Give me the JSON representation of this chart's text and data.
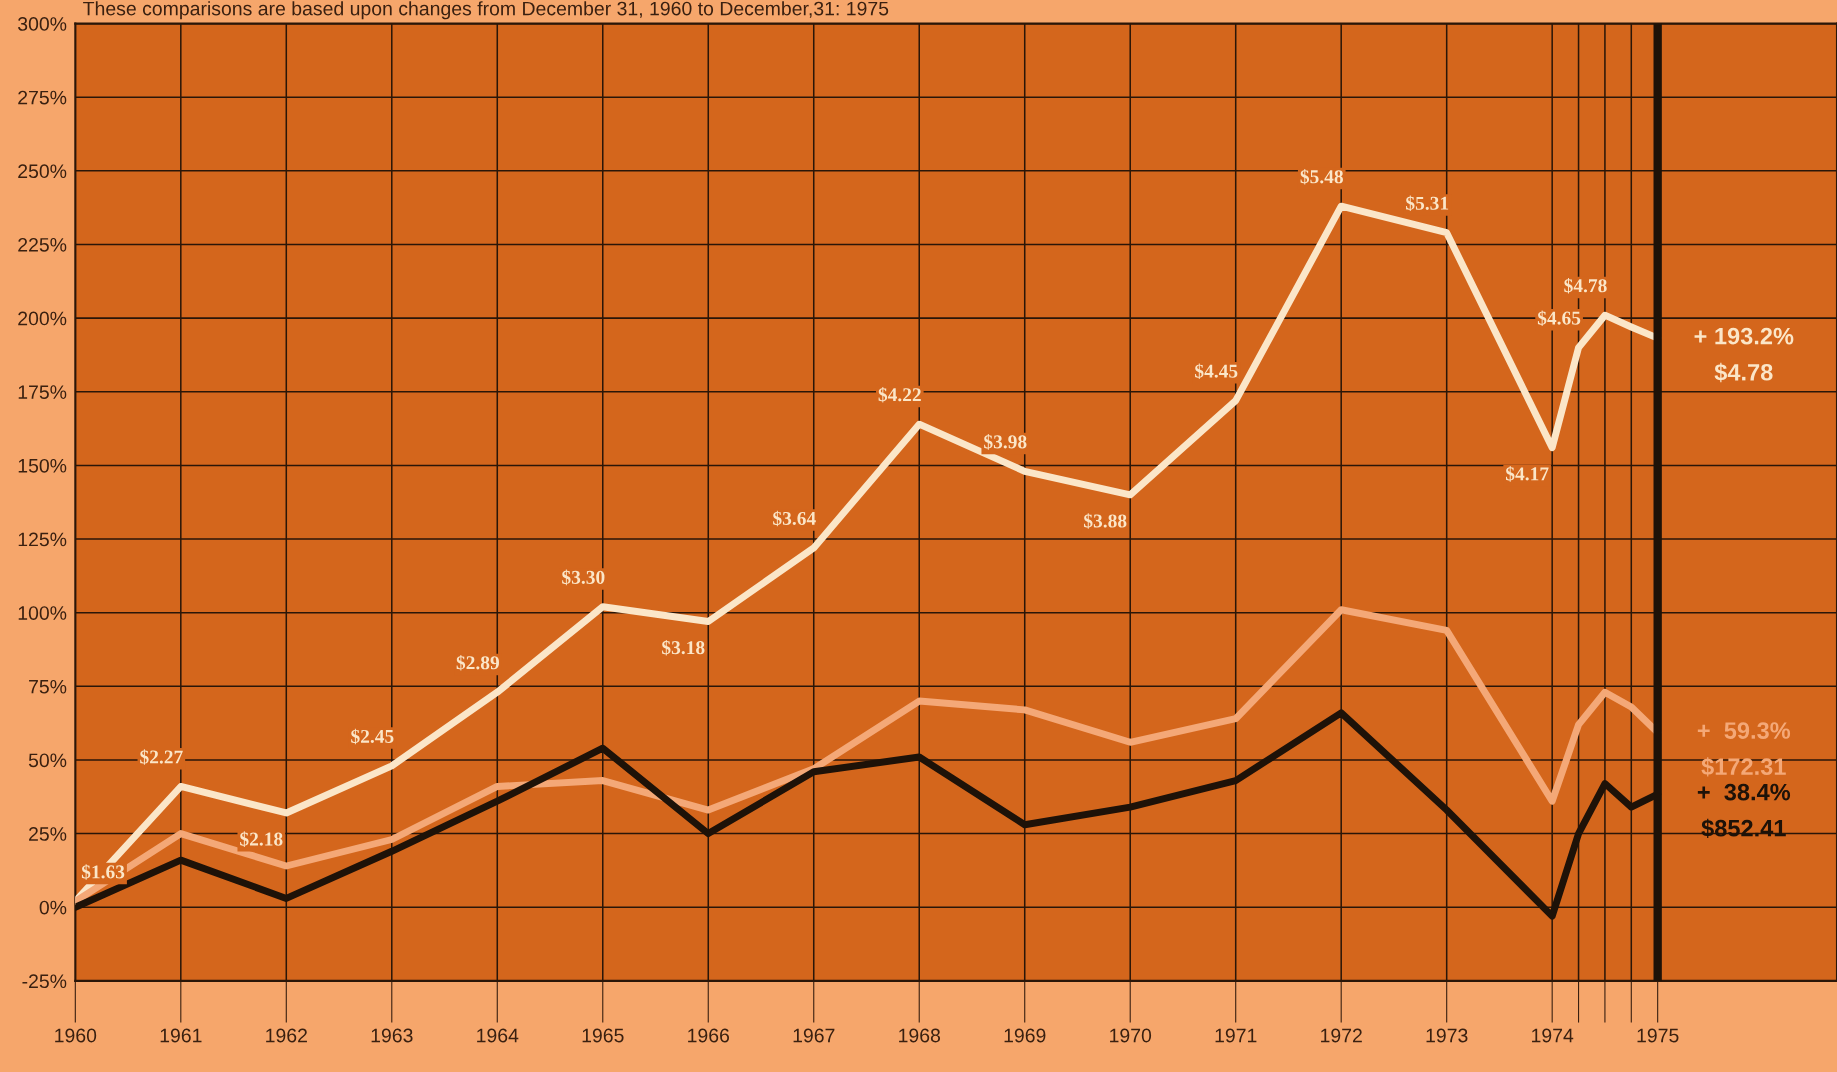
{
  "chart_data": {
    "type": "line",
    "x": [
      1960,
      1961,
      1962,
      1963,
      1964,
      1965,
      1966,
      1967,
      1968,
      1969,
      1970,
      1971,
      1972,
      1973,
      1974,
      1974.25,
      1974.5,
      1974.75,
      1975
    ],
    "series": [
      {
        "color": "#fbe6c8",
        "values": [
          2,
          41,
          32,
          48,
          73,
          102,
          97,
          122,
          164,
          148,
          140,
          172,
          238,
          229,
          156,
          190,
          201,
          197,
          193.2
        ]
      },
      {
        "color": "#f4a877",
        "values": [
          2,
          25,
          14,
          23,
          41,
          43,
          33,
          47,
          70,
          67,
          56,
          64,
          101,
          94,
          36,
          62,
          73,
          68,
          59.3
        ]
      },
      {
        "color": "#1e1208",
        "values": [
          0,
          16,
          3,
          19,
          36,
          54,
          25,
          46,
          51,
          28,
          34,
          43,
          66,
          33,
          -3,
          25,
          42,
          34,
          38.4
        ]
      }
    ],
    "xlim": [
      1960,
      1976.7
    ],
    "xticks": [
      1960,
      1961,
      1962,
      1963,
      1964,
      1965,
      1966,
      1967,
      1968,
      1969,
      1970,
      1971,
      1972,
      1973,
      1974,
      {
        "value": 1974.25,
        "label": null
      },
      {
        "value": 1974.5,
        "label": null
      },
      {
        "value": 1974.75,
        "label": null
      },
      1975
    ],
    "ylim": [
      -25,
      300
    ],
    "yticks": [
      {
        "value": -25,
        "label": "-25%"
      },
      {
        "value": 0,
        "label": "0%"
      },
      {
        "value": 25,
        "label": "25%"
      },
      {
        "value": 50,
        "label": "50%"
      },
      {
        "value": 75,
        "label": "75%"
      },
      {
        "value": 100,
        "label": "100%"
      },
      {
        "value": 125,
        "label": "125%"
      },
      {
        "value": 150,
        "label": "150%"
      },
      {
        "value": 175,
        "label": "175%"
      },
      {
        "value": 200,
        "label": "200%"
      },
      {
        "value": 225,
        "label": "225%"
      },
      {
        "value": 250,
        "label": "250%"
      },
      {
        "value": 275,
        "label": "275%"
      },
      {
        "value": 300,
        "label": "300%"
      }
    ],
    "grid": true,
    "line_style": "solid",
    "marker": "none",
    "ref_lines": [
      {
        "axis": "x",
        "value": 1975,
        "label": null,
        "color": "#1e1208"
      }
    ],
    "annotations": [
      "These comparisons are based upon changes from December 31, 1960 to December,31: 1975",
      {
        "text": "$1.63",
        "x": 1960,
        "y": 2
      },
      {
        "text": "$2.27",
        "x": 1961,
        "y": 41
      },
      {
        "text": "$2.18",
        "x": 1962,
        "y": 32
      },
      {
        "text": "$2.45",
        "x": 1963,
        "y": 48
      },
      {
        "text": "$2.89",
        "x": 1964,
        "y": 73
      },
      {
        "text": "$3.30",
        "x": 1965,
        "y": 102
      },
      {
        "text": "$3.18",
        "x": 1966,
        "y": 97
      },
      {
        "text": "$3.64",
        "x": 1967,
        "y": 122
      },
      {
        "text": "$4.22",
        "x": 1968,
        "y": 164
      },
      {
        "text": "$3.98",
        "x": 1969,
        "y": 148
      },
      {
        "text": "$3.88",
        "x": 1970,
        "y": 140
      },
      {
        "text": "$4.45",
        "x": 1971,
        "y": 172
      },
      {
        "text": "$5.48",
        "x": 1972,
        "y": 238
      },
      {
        "text": "$5.31",
        "x": 1973,
        "y": 229
      },
      {
        "text": "$4.17",
        "x": 1974,
        "y": 156
      },
      {
        "text": "$4.65",
        "x": 1974.25,
        "y": 190
      },
      {
        "text": "$4.78",
        "x": 1974.5,
        "y": 201
      },
      {
        "text": "+ 193.2%",
        "x": 1975,
        "y": 193.2
      },
      {
        "text": "$4.78",
        "x": 1975,
        "y": 193.2
      },
      {
        "text": "+  59.3%",
        "x": 1975,
        "y": 59.3
      },
      {
        "text": "$172.31",
        "x": 1975,
        "y": 59.3
      },
      {
        "text": "+  38.4%",
        "x": 1975,
        "y": 38.4
      },
      {
        "text": "$852.41",
        "x": 1975,
        "y": 38.4
      }
    ]
  }
}
